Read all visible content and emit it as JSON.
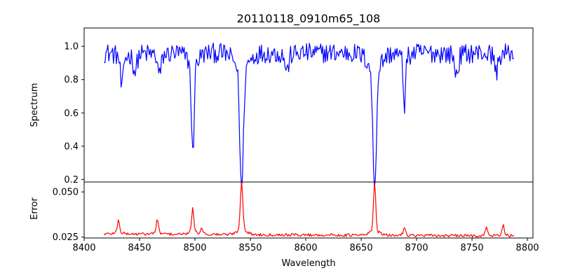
{
  "chart_data": [
    {
      "type": "line",
      "title": "20110118_0910m65_108",
      "ylabel": "Spectrum",
      "xlabel": "",
      "xlim": [
        8400,
        8805
      ],
      "ylim": [
        0.185,
        1.11
      ],
      "yticks": [
        0.2,
        0.4,
        0.6,
        0.8,
        1.0
      ],
      "ytick_labels": [
        "0.2",
        "0.4",
        "0.6",
        "0.8",
        "1.0"
      ],
      "grid": false,
      "series": [
        {
          "color": "#0000ff",
          "x_range": [
            8418,
            8788
          ],
          "continuum": 0.96,
          "noise_amplitude": 0.06,
          "absorption_lines": [
            {
              "x": 8434,
              "depth": 0.2,
              "width": 1.2
            },
            {
              "x": 8446,
              "depth": 0.1,
              "width": 1.5
            },
            {
              "x": 8468,
              "depth": 0.12,
              "width": 1.5
            },
            {
              "x": 8498.0,
              "depth": 0.55,
              "width": 1.2
            },
            {
              "x": 8542.1,
              "depth": 0.74,
              "width": 1.6
            },
            {
              "x": 8583,
              "depth": 0.1,
              "width": 1.5
            },
            {
              "x": 8662.1,
              "depth": 0.72,
              "width": 1.6
            },
            {
              "x": 8689,
              "depth": 0.28,
              "width": 1.0
            },
            {
              "x": 8736,
              "depth": 0.12,
              "width": 1.5
            },
            {
              "x": 8772,
              "depth": 0.1,
              "width": 1.5
            }
          ]
        }
      ]
    },
    {
      "type": "line",
      "title": "",
      "ylabel": "Error",
      "xlabel": "Wavelength",
      "xlim": [
        8400,
        8805
      ],
      "ylim": [
        0.0245,
        0.0555
      ],
      "xticks": [
        8400,
        8450,
        8500,
        8550,
        8600,
        8650,
        8700,
        8750,
        8800
      ],
      "xtick_labels": [
        "8400",
        "8450",
        "8500",
        "8550",
        "8600",
        "8650",
        "8700",
        "8750",
        "8800"
      ],
      "yticks": [
        0.025,
        0.05
      ],
      "ytick_labels": [
        "0.025",
        "0.050"
      ],
      "grid": false,
      "series": [
        {
          "color": "#ff0000",
          "x_range": [
            8418,
            8788
          ],
          "baseline": 0.0268,
          "noise_amplitude": 0.0008,
          "emission_lines": [
            {
              "x": 8431,
              "height": 0.007,
              "width": 1.0
            },
            {
              "x": 8466,
              "height": 0.007,
              "width": 1.0
            },
            {
              "x": 8498.0,
              "height": 0.014,
              "width": 0.9
            },
            {
              "x": 8506,
              "height": 0.0035,
              "width": 1.0
            },
            {
              "x": 8542.1,
              "height": 0.027,
              "width": 1.1
            },
            {
              "x": 8662.1,
              "height": 0.027,
              "width": 1.0
            },
            {
              "x": 8689,
              "height": 0.004,
              "width": 1.0
            },
            {
              "x": 8763,
              "height": 0.004,
              "width": 1.0
            },
            {
              "x": 8778,
              "height": 0.0055,
              "width": 1.0
            }
          ]
        }
      ]
    }
  ]
}
